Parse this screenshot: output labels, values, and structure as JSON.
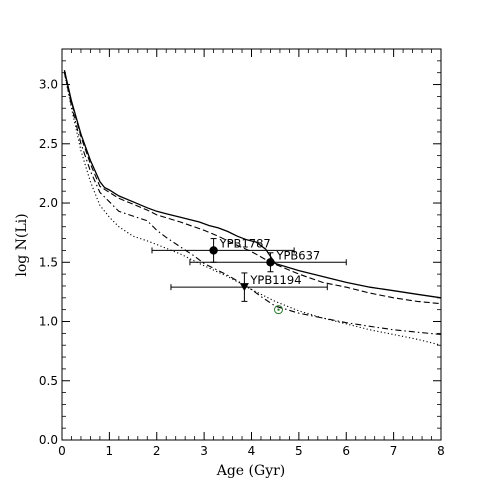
{
  "chart_data": {
    "type": "line",
    "xlabel": "Age (Gyr)",
    "ylabel": "log N(Li)",
    "xlim": [
      0,
      8
    ],
    "ylim": [
      0.0,
      3.3
    ],
    "xticks": [
      "0",
      "1",
      "2",
      "3",
      "4",
      "5",
      "6",
      "7",
      "8"
    ],
    "yticks": [
      "0.0",
      "0.5",
      "1.0",
      "1.5",
      "2.0",
      "2.5",
      "3.0"
    ],
    "grid": false,
    "legend": "none",
    "series": [
      {
        "style": "solid",
        "x": [
          0.05,
          0.2,
          0.4,
          0.6,
          0.8,
          0.9,
          1.0,
          1.2,
          1.5,
          1.8,
          2.0,
          2.2,
          2.5,
          2.7,
          2.9,
          3.1,
          3.3,
          3.5,
          3.7,
          3.9,
          4.1,
          4.3,
          4.5,
          5.0,
          5.5,
          6.0,
          6.5,
          7.0,
          7.5,
          8.0
        ],
        "y": [
          3.12,
          2.86,
          2.58,
          2.36,
          2.18,
          2.13,
          2.11,
          2.06,
          2.01,
          1.96,
          1.93,
          1.91,
          1.88,
          1.86,
          1.84,
          1.81,
          1.79,
          1.76,
          1.72,
          1.69,
          1.67,
          1.61,
          1.49,
          1.43,
          1.38,
          1.33,
          1.29,
          1.26,
          1.23,
          1.2
        ]
      },
      {
        "style": "dashed",
        "x": [
          0.05,
          0.2,
          0.4,
          0.6,
          0.8,
          1.0,
          1.2,
          1.5,
          1.8,
          2.0,
          2.5,
          3.0,
          3.3,
          3.6,
          4.0,
          4.4,
          5.0,
          5.5,
          6.0,
          6.5,
          7.0,
          7.5,
          8.0
        ],
        "y": [
          3.12,
          2.85,
          2.56,
          2.33,
          2.14,
          2.09,
          2.04,
          1.99,
          1.94,
          1.9,
          1.84,
          1.77,
          1.72,
          1.66,
          1.59,
          1.5,
          1.4,
          1.33,
          1.29,
          1.24,
          1.2,
          1.17,
          1.15
        ]
      },
      {
        "style": "dash-dot",
        "x": [
          0.05,
          0.2,
          0.4,
          0.6,
          0.8,
          1.0,
          1.2,
          1.5,
          1.8,
          2.0,
          2.2,
          2.5,
          2.8,
          3.0,
          3.2,
          3.5,
          3.8,
          4.0,
          4.2,
          4.5,
          5.0,
          5.5,
          6.0,
          6.5,
          7.0,
          7.5,
          8.0
        ],
        "y": [
          3.1,
          2.82,
          2.5,
          2.27,
          2.09,
          2.01,
          1.93,
          1.89,
          1.85,
          1.77,
          1.71,
          1.63,
          1.55,
          1.49,
          1.45,
          1.39,
          1.32,
          1.27,
          1.21,
          1.13,
          1.07,
          1.03,
          0.99,
          0.96,
          0.93,
          0.91,
          0.89
        ]
      },
      {
        "style": "dotted",
        "x": [
          0.05,
          0.2,
          0.4,
          0.6,
          0.8,
          1.0,
          1.2,
          1.5,
          1.8,
          2.0,
          2.5,
          3.0,
          3.5,
          4.0,
          4.5,
          5.0,
          5.5,
          6.0,
          6.5,
          7.0,
          7.5,
          8.0
        ],
        "y": [
          3.1,
          2.8,
          2.44,
          2.18,
          1.98,
          1.88,
          1.8,
          1.72,
          1.68,
          1.65,
          1.57,
          1.47,
          1.38,
          1.27,
          1.17,
          1.09,
          1.03,
          0.98,
          0.93,
          0.89,
          0.85,
          0.8
        ]
      }
    ],
    "points": [
      {
        "label": "YPB1787",
        "marker": "circle",
        "x": 3.2,
        "y": 1.6,
        "xerr": [
          1.9,
          4.9
        ],
        "yerr": [
          1.5,
          1.7
        ]
      },
      {
        "label": "YPB637",
        "marker": "circle",
        "x": 4.4,
        "y": 1.5,
        "xerr": [
          2.7,
          6.0
        ],
        "yerr": [
          1.42,
          1.58
        ]
      },
      {
        "label": "YPB1194",
        "marker": "triangle-down",
        "x": 3.85,
        "y": 1.29,
        "xerr": [
          2.3,
          5.6
        ],
        "yerr": [
          1.17,
          1.41
        ]
      }
    ],
    "sun": {
      "marker": "sun-symbol",
      "color": "#2e7d32",
      "x": 4.57,
      "y": 1.1
    }
  }
}
